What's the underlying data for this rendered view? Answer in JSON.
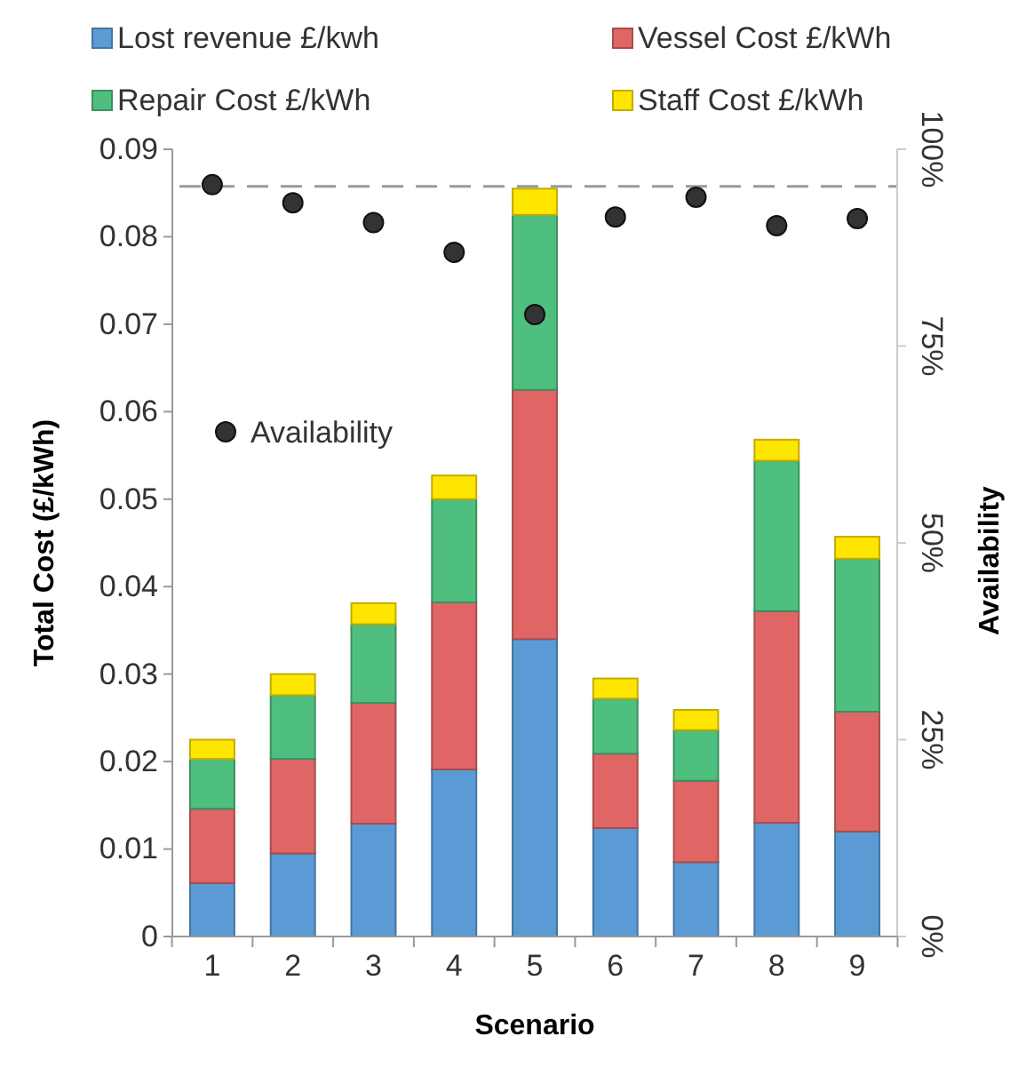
{
  "chart_data": {
    "type": "bar",
    "stacked": true,
    "xlabel": "Scenario",
    "ylabel": "Total Cost (£/kWh)",
    "y2label": "Availability",
    "categories": [
      "1",
      "2",
      "3",
      "4",
      "5",
      "6",
      "7",
      "8",
      "9"
    ],
    "ylim": [
      0,
      0.09
    ],
    "yticks": [
      0,
      0.01,
      0.02,
      0.03,
      0.04,
      0.05,
      0.06,
      0.07,
      0.08,
      0.09
    ],
    "y2lim": [
      0,
      100
    ],
    "y2ticks": [
      {
        "value": 0,
        "label": "0%"
      },
      {
        "value": 25,
        "label": "25%"
      },
      {
        "value": 50,
        "label": "50%"
      },
      {
        "value": 75,
        "label": "75%"
      },
      {
        "value": 100,
        "label": "100%"
      }
    ],
    "series": [
      {
        "name": "Lost revenue £/kwh",
        "color": "#5b9bd5",
        "values": [
          0.0061,
          0.0095,
          0.0129,
          0.0191,
          0.034,
          0.0124,
          0.0085,
          0.013,
          0.012
        ]
      },
      {
        "name": "Vessel Cost £/kWh",
        "color": "#e06666",
        "values": [
          0.0085,
          0.0108,
          0.0138,
          0.0191,
          0.0285,
          0.0085,
          0.0093,
          0.0242,
          0.0137
        ]
      },
      {
        "name": "Repair Cost £/kWh",
        "color": "#4fbf7f",
        "values": [
          0.0057,
          0.0073,
          0.009,
          0.0118,
          0.02,
          0.0063,
          0.0058,
          0.0172,
          0.0175
        ]
      },
      {
        "name": "Staff Cost  £/kWh",
        "color": "#ffe600",
        "values": [
          0.0022,
          0.0024,
          0.0024,
          0.0027,
          0.003,
          0.0023,
          0.0023,
          0.0024,
          0.0025
        ]
      },
      {
        "name": "Availability",
        "type": "scatter",
        "axis": "y2",
        "color": "#333333",
        "values": [
          95.5,
          93.2,
          90.7,
          86.9,
          79,
          91.4,
          93.9,
          90.3,
          91.2
        ]
      }
    ],
    "ref_lines": [
      {
        "axis": "y2",
        "value": 95.3,
        "color": "#999999",
        "line_style": "dashed"
      }
    ],
    "marker": "circle",
    "legend": "top",
    "grid": false
  }
}
